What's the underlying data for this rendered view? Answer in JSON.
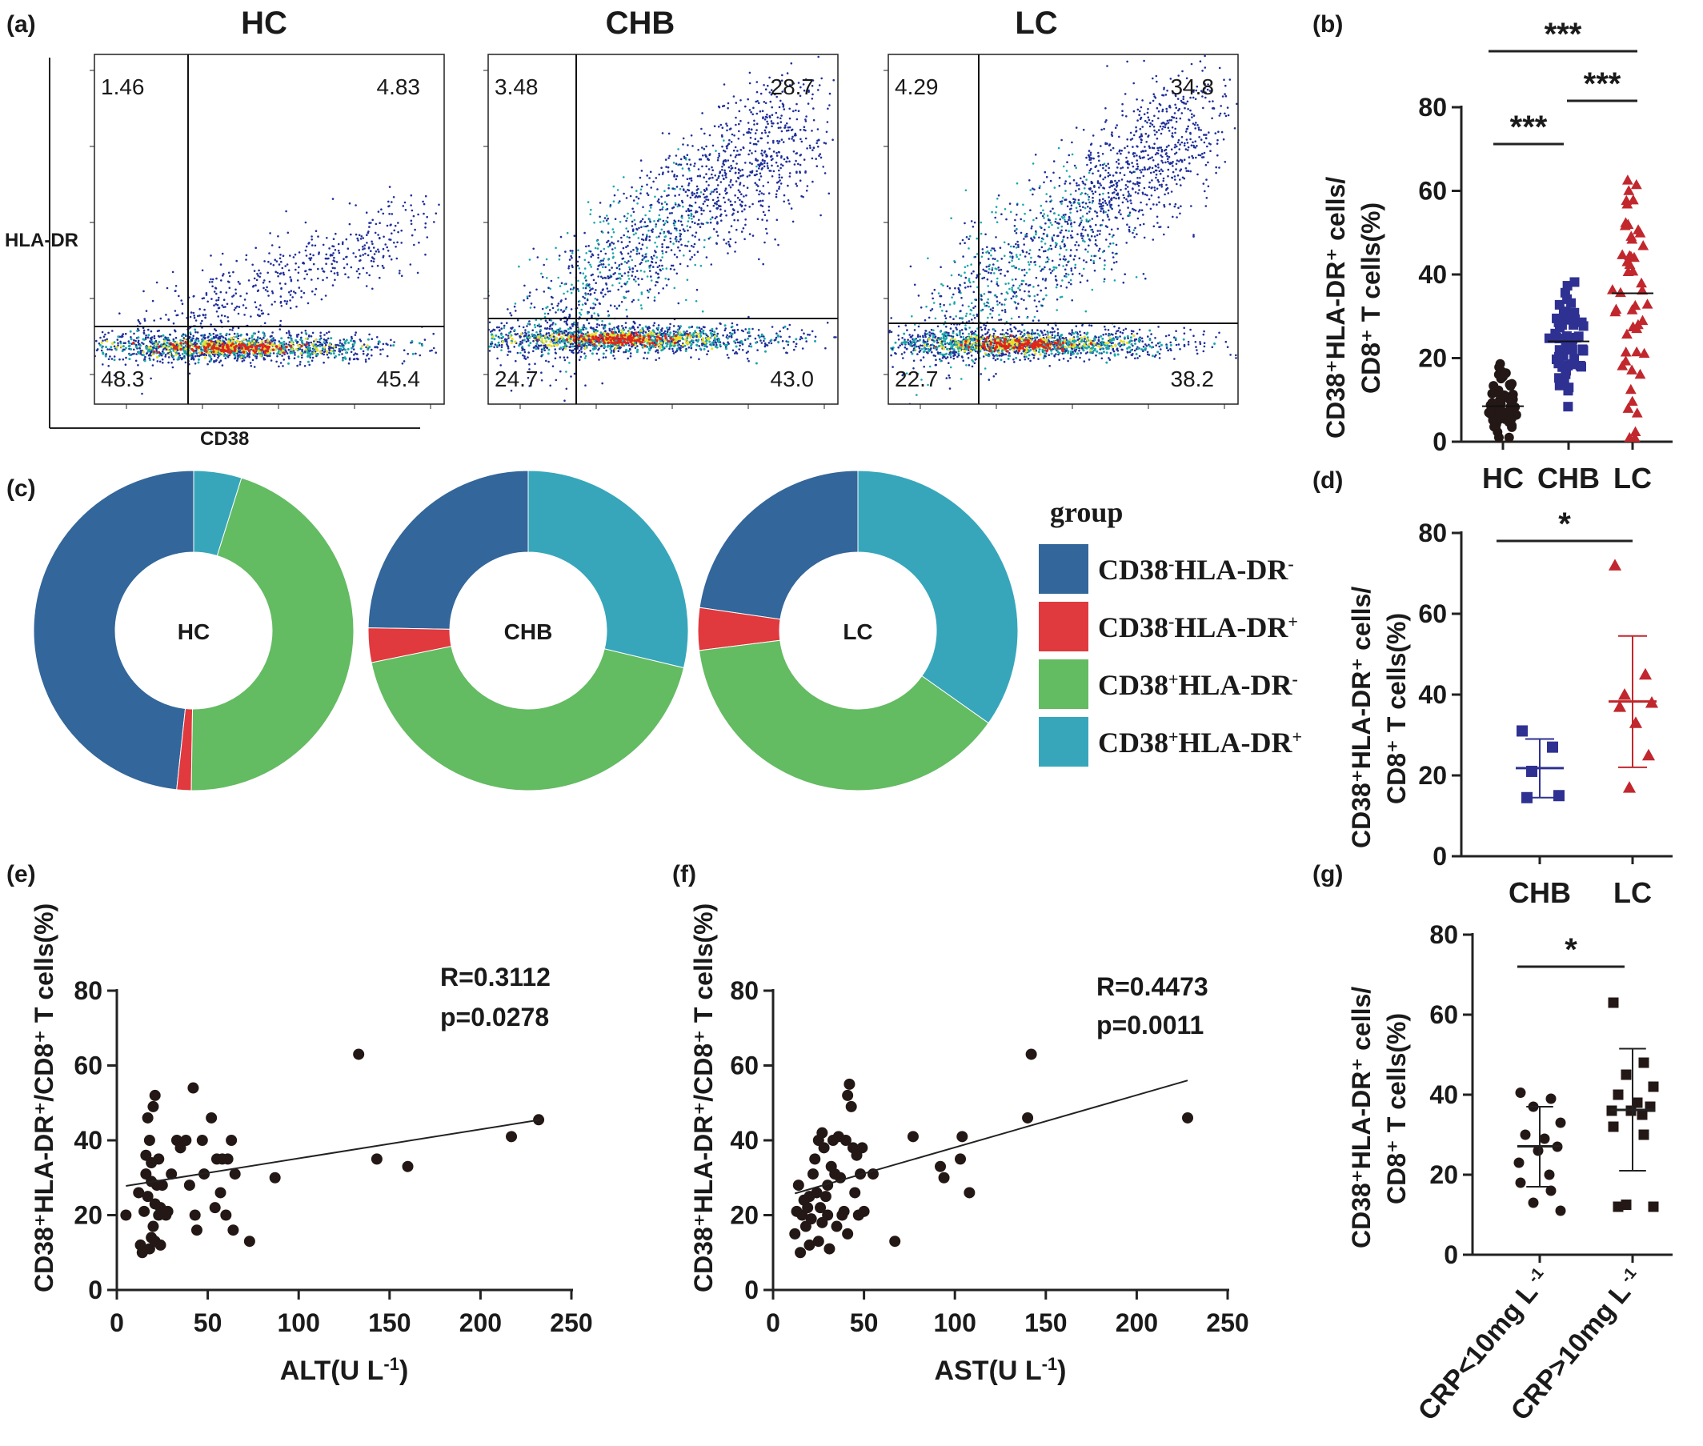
{
  "panel_labels": {
    "a": "(a)",
    "b": "(b)",
    "c": "(c)",
    "d": "(d)",
    "e": "(e)",
    "f": "(f)",
    "g": "(g)"
  },
  "chart_data": [
    {
      "id": "a",
      "type": "scatter",
      "subtype": "flow-cytometry-density",
      "xlabel": "CD38",
      "ylabel": "HLA-DR",
      "plots": [
        {
          "title": "HC",
          "quadrants": {
            "ul": "1.46",
            "ur": "4.83",
            "ll": "48.3",
            "lr": "45.4"
          }
        },
        {
          "title": "CHB",
          "quadrants": {
            "ul": "3.48",
            "ur": "28.7",
            "ll": "24.7",
            "lr": "43.0"
          }
        },
        {
          "title": "LC",
          "quadrants": {
            "ul": "4.29",
            "ur": "34.8",
            "ll": "22.7",
            "lr": "38.2"
          }
        }
      ],
      "colors": {
        "dots": "#1f2f9a",
        "mid": "#19a9a8",
        "high": "#e8e02a",
        "peak": "#e0251c"
      }
    },
    {
      "id": "b",
      "type": "scatter",
      "ylabel_line1": "CD38⁺HLA-DR⁺ cells/",
      "ylabel_line2": "CD8⁺ T cells(%)",
      "categories": [
        "HC",
        "CHB",
        "LC"
      ],
      "ylim": [
        0,
        80
      ],
      "yticks": [
        "0",
        "20",
        "40",
        "60",
        "80"
      ],
      "series": [
        {
          "category": "HC",
          "marker": "circle",
          "color": "#231815",
          "mean": 8.5,
          "sd": 4.5,
          "n": 60
        },
        {
          "category": "CHB",
          "marker": "square",
          "color": "#2e3192",
          "mean": 24,
          "sd": 8,
          "n": 60
        },
        {
          "category": "LC",
          "marker": "triangle",
          "color": "#c1272d",
          "mean": 35.5,
          "sd": 16,
          "n": 50
        }
      ],
      "significance": [
        {
          "pair": [
            "HC",
            "CHB"
          ],
          "label": "***"
        },
        {
          "pair": [
            "CHB",
            "LC"
          ],
          "label": "***"
        },
        {
          "pair": [
            "HC",
            "LC"
          ],
          "label": "***"
        }
      ]
    },
    {
      "id": "c",
      "type": "pie",
      "subtype": "donut",
      "legend_title": "group",
      "legend": [
        {
          "base": "CD38",
          "sup1": "-",
          "mid": "HLA-DR",
          "sup2": "-",
          "color": "#33669a"
        },
        {
          "base": "CD38",
          "sup1": "-",
          "mid": "HLA-DR",
          "sup2": "+",
          "color": "#e0393e"
        },
        {
          "base": "CD38",
          "sup1": "+",
          "mid": "HLA-DR",
          "sup2": "-",
          "color": "#63bb62"
        },
        {
          "base": "CD38",
          "sup1": "+",
          "mid": "HLA-DR",
          "sup2": "+",
          "color": "#37a6ba"
        }
      ],
      "donuts": [
        {
          "label": "HC",
          "values": [
            48.3,
            1.46,
            45.4,
            4.83
          ]
        },
        {
          "label": "CHB",
          "values": [
            24.7,
            3.48,
            43.0,
            28.7
          ]
        },
        {
          "label": "LC",
          "values": [
            22.7,
            4.29,
            38.2,
            34.8
          ]
        }
      ]
    },
    {
      "id": "d",
      "type": "scatter",
      "ylabel_line1": "CD38⁺HLA-DR⁺ cells/",
      "ylabel_line2": "CD8⁺ T cells(%)",
      "categories": [
        "CHB",
        "LC"
      ],
      "ylim": [
        0,
        80
      ],
      "yticks": [
        "0",
        "20",
        "40",
        "60",
        "80"
      ],
      "series": [
        {
          "category": "CHB",
          "marker": "square",
          "color": "#2e3192",
          "values": [
            31,
            27,
            21,
            15,
            14.5
          ],
          "mean": 21.8,
          "sd_low": 14.5,
          "sd_high": 29
        },
        {
          "category": "LC",
          "marker": "triangle",
          "color": "#c1272d",
          "values": [
            72,
            45,
            40,
            38,
            37,
            33,
            25,
            17
          ],
          "mean": 38.3,
          "sd_low": 22,
          "sd_high": 54.5
        }
      ],
      "significance": [
        {
          "pair": [
            "CHB",
            "LC"
          ],
          "label": "*"
        }
      ]
    },
    {
      "id": "e",
      "type": "scatter",
      "xlabel_base": "ALT(U L",
      "xlabel_sup": "-1",
      "xlabel_end": ")",
      "ylabel": "CD38⁺HLA-DR⁺/CD8⁺ T cells(%)",
      "xlim": [
        0,
        250
      ],
      "ylim": [
        0,
        80
      ],
      "xticks": [
        "0",
        "50",
        "100",
        "150",
        "200",
        "250"
      ],
      "yticks": [
        "0",
        "20",
        "40",
        "60",
        "80"
      ],
      "stats": [
        "R=0.3112",
        "p=0.0278"
      ],
      "fit": {
        "x": [
          5,
          233
        ],
        "y": [
          27.8,
          45.5
        ]
      },
      "points": [
        [
          5,
          20
        ],
        [
          12,
          26
        ],
        [
          13,
          12
        ],
        [
          14,
          10
        ],
        [
          15,
          21
        ],
        [
          16,
          31
        ],
        [
          16,
          36
        ],
        [
          17,
          25
        ],
        [
          17,
          46
        ],
        [
          18,
          40
        ],
        [
          18,
          11
        ],
        [
          19,
          29
        ],
        [
          19,
          34
        ],
        [
          19,
          14
        ],
        [
          20,
          49
        ],
        [
          20,
          17
        ],
        [
          21,
          52
        ],
        [
          21,
          13
        ],
        [
          21,
          23
        ],
        [
          22,
          28
        ],
        [
          23,
          20
        ],
        [
          23,
          35
        ],
        [
          24,
          22
        ],
        [
          24,
          12
        ],
        [
          25,
          28
        ],
        [
          27,
          20
        ],
        [
          28,
          21
        ],
        [
          30,
          31
        ],
        [
          33,
          40
        ],
        [
          35,
          38
        ],
        [
          38,
          40
        ],
        [
          40,
          28
        ],
        [
          42,
          54
        ],
        [
          43,
          20
        ],
        [
          44,
          16
        ],
        [
          47,
          40
        ],
        [
          48,
          31
        ],
        [
          52,
          46
        ],
        [
          54,
          22
        ],
        [
          55,
          35
        ],
        [
          57,
          26
        ],
        [
          58,
          35
        ],
        [
          60,
          20
        ],
        [
          61,
          35
        ],
        [
          63,
          40
        ],
        [
          64,
          16
        ],
        [
          65,
          31
        ],
        [
          73,
          13
        ],
        [
          87,
          30
        ],
        [
          133,
          63
        ],
        [
          143,
          35
        ],
        [
          160,
          33
        ],
        [
          217,
          41
        ],
        [
          232,
          45.5
        ]
      ],
      "point_color": "#231815"
    },
    {
      "id": "f",
      "type": "scatter",
      "xlabel_base": "AST(U L",
      "xlabel_sup": "-1",
      "xlabel_end": ")",
      "ylabel": "CD38⁺HLA-DR⁺/CD8⁺ T cells(%)",
      "xlim": [
        0,
        250
      ],
      "ylim": [
        0,
        80
      ],
      "xticks": [
        "0",
        "50",
        "100",
        "150",
        "200",
        "250"
      ],
      "yticks": [
        "0",
        "20",
        "40",
        "60",
        "80"
      ],
      "stats": [
        "R=0.4473",
        "p=0.0011"
      ],
      "fit": {
        "x": [
          12,
          228
        ],
        "y": [
          25.8,
          56
        ]
      },
      "points": [
        [
          12,
          15
        ],
        [
          13,
          21
        ],
        [
          14,
          28
        ],
        [
          15,
          10
        ],
        [
          16,
          20
        ],
        [
          17,
          24
        ],
        [
          18,
          17
        ],
        [
          19,
          22
        ],
        [
          20,
          25
        ],
        [
          20,
          12
        ],
        [
          21,
          19
        ],
        [
          22,
          31
        ],
        [
          23,
          35
        ],
        [
          24,
          26
        ],
        [
          25,
          40
        ],
        [
          25,
          13
        ],
        [
          26,
          22
        ],
        [
          27,
          42
        ],
        [
          27,
          18
        ],
        [
          28,
          38
        ],
        [
          29,
          25
        ],
        [
          30,
          28
        ],
        [
          30,
          20
        ],
        [
          31,
          11
        ],
        [
          32,
          33
        ],
        [
          33,
          40
        ],
        [
          34,
          31
        ],
        [
          35,
          17
        ],
        [
          36,
          41
        ],
        [
          37,
          30
        ],
        [
          38,
          20
        ],
        [
          39,
          21
        ],
        [
          40,
          40
        ],
        [
          41,
          52
        ],
        [
          41,
          15
        ],
        [
          42,
          55
        ],
        [
          43,
          49
        ],
        [
          44,
          38
        ],
        [
          45,
          26
        ],
        [
          46,
          36
        ],
        [
          47,
          20
        ],
        [
          48,
          31
        ],
        [
          49,
          38
        ],
        [
          50,
          21
        ],
        [
          55,
          31
        ],
        [
          67,
          13
        ],
        [
          77,
          41
        ],
        [
          92,
          33
        ],
        [
          94,
          30
        ],
        [
          103,
          35
        ],
        [
          104,
          41
        ],
        [
          108,
          26
        ],
        [
          140,
          46
        ],
        [
          142,
          63
        ],
        [
          228,
          46
        ]
      ],
      "point_color": "#231815"
    },
    {
      "id": "g",
      "type": "scatter",
      "ylabel_line1": "CD38⁺HLA-DR⁺ cells/",
      "ylabel_line2": "CD8⁺ T cells(%)",
      "categories": [
        "CRP<10mg L",
        "CRP>10mg L"
      ],
      "category_sup": "-1",
      "ylim": [
        0,
        80
      ],
      "yticks": [
        "0",
        "20",
        "40",
        "60",
        "80"
      ],
      "series": [
        {
          "category": "CRP<10mg L",
          "marker": "circle",
          "color": "#231815",
          "values": [
            40.5,
            39,
            37,
            33,
            30,
            29,
            27,
            26,
            23,
            20,
            18,
            16,
            13,
            11
          ],
          "mean": 27.1,
          "sd_low": 17,
          "sd_high": 37
        },
        {
          "category": "CRP>10mg L",
          "marker": "square",
          "color": "#231815",
          "values": [
            63,
            48,
            45,
            42,
            40,
            38,
            37,
            36,
            36,
            35,
            32,
            30,
            12.5,
            12,
            12
          ],
          "mean": 36.2,
          "sd_low": 21,
          "sd_high": 51.5
        }
      ],
      "significance": [
        {
          "pair": [
            "CRP<10mg L",
            "CRP>10mg L"
          ],
          "label": "*"
        }
      ]
    }
  ]
}
